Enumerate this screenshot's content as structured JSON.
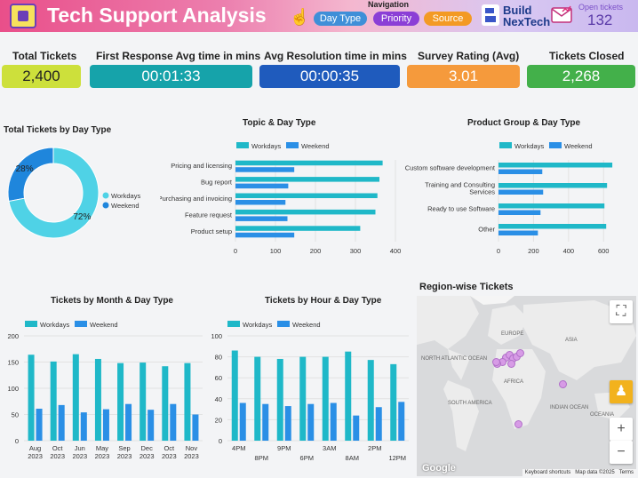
{
  "header": {
    "title": "Tech Support Analysis",
    "navigation_label": "Navigation",
    "nav_buttons": [
      "Day Type",
      "Priority",
      "Source"
    ],
    "brand_line1": "Build",
    "brand_line2": "NexTech",
    "open_tickets_label": "Open tickets",
    "open_tickets_value": "132",
    "icons": [
      "chip-logo-icon",
      "hand-pointer-icon",
      "brand-logo-icon",
      "mail-chart-icon"
    ]
  },
  "kpis": [
    {
      "label": "Total Tickets",
      "value": "2,400",
      "color": "#cde03b",
      "text_color": "#222222"
    },
    {
      "label": "First Response Avg time in mins",
      "value": "00:01:33",
      "color": "#16a3aa",
      "text_color": "#ffffff"
    },
    {
      "label": "Avg Resolution time in mins",
      "value": "00:00:35",
      "color": "#1f5bbd",
      "text_color": "#ffffff"
    },
    {
      "label": "Survey Rating (Avg)",
      "value": "3.01",
      "color": "#f59a3c",
      "text_color": "#ffffff"
    },
    {
      "label": "Tickets Closed",
      "value": "2,268",
      "color": "#43b04a",
      "text_color": "#ffffff"
    }
  ],
  "colors": {
    "workdays": "#1fb8c8",
    "weekend": "#2a8fe6",
    "donut_workdays": "#4fd2e6",
    "donut_weekend": "#1f86dc"
  },
  "map": {
    "title": "Region-wise Tickets",
    "labels": [
      "EUROPE",
      "ASIA",
      "NORTH ATLANTIC OCEAN",
      "AFRICA",
      "SOUTH AMERICA",
      "INDIAN OCEAN",
      "OCEANIA"
    ],
    "google_label": "Google",
    "footer": [
      "Keyboard shortcuts",
      "Map data ©2025",
      "Terms"
    ],
    "controls": {
      "fullscreen": "⛶",
      "zoom_in": "+",
      "zoom_out": "−"
    }
  },
  "chart_data": [
    {
      "type": "pie",
      "title": "Total Tickets by Day Type",
      "labels": [
        "Workdays",
        "Weekend"
      ],
      "values": [
        72,
        28
      ],
      "data_labels": [
        "72%",
        "28%"
      ],
      "donut": true,
      "legend": "right"
    },
    {
      "type": "bar",
      "orientation": "horizontal",
      "title": "Topic & Day Type",
      "categories": [
        "Pricing and licensing",
        "Bug report",
        "Purchasing and invoicing",
        "Feature request",
        "Product setup"
      ],
      "series": [
        {
          "name": "Workdays",
          "values": [
            368,
            360,
            355,
            350,
            312
          ]
        },
        {
          "name": "Weekend",
          "values": [
            147,
            132,
            125,
            130,
            147
          ]
        }
      ],
      "xticks": [
        "0",
        "100",
        "200",
        "300",
        "400"
      ],
      "xlim": [
        0,
        400
      ],
      "legend": "top"
    },
    {
      "type": "bar",
      "orientation": "horizontal",
      "title": "Product Group & Day Type",
      "categories": [
        "Custom software development",
        "Training and Consulting Services",
        "Ready to use Software",
        "Other"
      ],
      "series": [
        {
          "name": "Workdays",
          "values": [
            650,
            620,
            605,
            615
          ]
        },
        {
          "name": "Weekend",
          "values": [
            250,
            255,
            240,
            225
          ]
        }
      ],
      "xticks": [
        "0",
        "200",
        "400",
        "600"
      ],
      "xlim": [
        0,
        680
      ],
      "legend": "top"
    },
    {
      "type": "bar",
      "title": "Tickets by Month & Day Type",
      "categories": [
        "Aug 2023",
        "Oct 2023",
        "Jun 2023",
        "May 2023",
        "Sep 2023",
        "Dec 2023",
        "Oct 2023",
        "Nov 2023"
      ],
      "x_tick_lines": [
        [
          "Aug",
          "2023"
        ],
        [
          "Oct",
          "2023"
        ],
        [
          "Jun",
          "2023"
        ],
        [
          "May",
          "2023"
        ],
        [
          "Sep",
          "2023"
        ],
        [
          "Dec",
          "2023"
        ],
        [
          "Oct",
          "2023"
        ],
        [
          "Nov",
          "2023"
        ]
      ],
      "series": [
        {
          "name": "Workdays",
          "values": [
            164,
            151,
            165,
            156,
            148,
            149,
            142,
            148
          ]
        },
        {
          "name": "Weekend",
          "values": [
            61,
            68,
            54,
            60,
            70,
            59,
            70,
            50
          ]
        }
      ],
      "yticks": [
        "0",
        "50",
        "100",
        "150",
        "200"
      ],
      "ylim": [
        0,
        200
      ],
      "legend": "top"
    },
    {
      "type": "bar",
      "title": "Tickets by Hour & Day Type",
      "categories": [
        "4PM",
        "8PM",
        "9PM",
        "6PM",
        "3AM",
        "8AM",
        "2PM",
        "12PM"
      ],
      "x_tick_top": [
        "4PM",
        "9PM",
        "3AM",
        "2PM"
      ],
      "x_tick_bottom": [
        "8PM",
        "6PM",
        "8AM",
        "12PM"
      ],
      "series": [
        {
          "name": "Workdays",
          "values": [
            86,
            80,
            78,
            80,
            80,
            85,
            77,
            73
          ]
        },
        {
          "name": "Weekend",
          "values": [
            36,
            35,
            33,
            35,
            36,
            24,
            32,
            37
          ]
        }
      ],
      "yticks": [
        "0",
        "20",
        "40",
        "60",
        "80",
        "100"
      ],
      "ylim": [
        0,
        100
      ],
      "legend": "top"
    }
  ]
}
